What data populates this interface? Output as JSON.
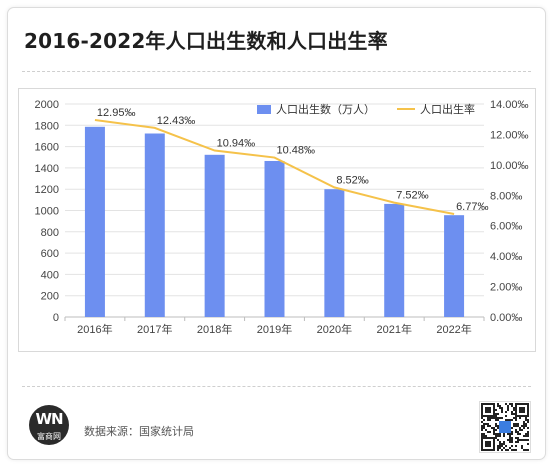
{
  "page": {
    "title": "2016-2022年人口出生数和人口出生率"
  },
  "footer": {
    "logo_text": "WN",
    "logo_subtext": "富商网",
    "source": "数据来源：国家统计局"
  },
  "chart_data": {
    "type": "bar+line",
    "categories": [
      "2016年",
      "2017年",
      "2018年",
      "2019年",
      "2020年",
      "2021年",
      "2022年"
    ],
    "series": [
      {
        "name": "人口出生数（万人）",
        "kind": "bar",
        "axis": "left",
        "color": "#6d8ff0",
        "values": [
          1786,
          1723,
          1523,
          1465,
          1200,
          1062,
          956
        ]
      },
      {
        "name": "人口出生率",
        "kind": "line",
        "axis": "right",
        "color": "#f5c24a",
        "values": [
          12.95,
          12.43,
          10.94,
          10.48,
          8.52,
          7.52,
          6.77
        ],
        "labels": [
          "12.95‰",
          "12.43‰",
          "10.94‰",
          "10.48‰",
          "8.52‰",
          "7.52‰",
          "6.77‰"
        ]
      }
    ],
    "ylim_left": [
      0,
      2000
    ],
    "yticks_left": [
      "0",
      "200",
      "400",
      "600",
      "800",
      "1000",
      "1200",
      "1400",
      "1600",
      "1800",
      "2000"
    ],
    "ylim_right": [
      0,
      14
    ],
    "yticks_right": [
      "0.00‰",
      "2.00‰",
      "4.00‰",
      "6.00‰",
      "8.00‰",
      "10.00‰",
      "12.00‰",
      "14.00‰"
    ],
    "grid": true,
    "legend_position": "top-right"
  }
}
